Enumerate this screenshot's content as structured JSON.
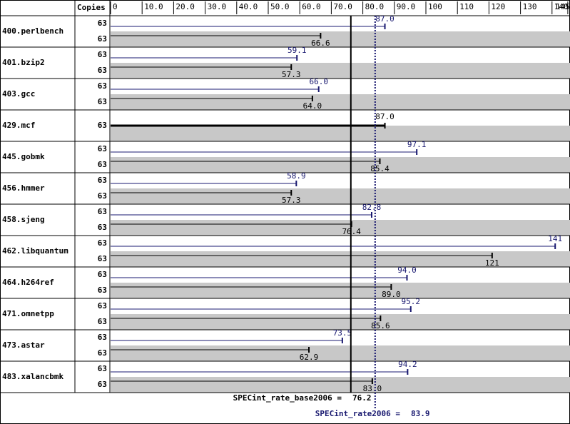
{
  "chart_data": {
    "type": "spec-bar",
    "copies_header": "Copies",
    "categories": [
      "400.perlbench",
      "401.bzip2",
      "403.gcc",
      "429.mcf",
      "445.gobmk",
      "456.hmmer",
      "458.sjeng",
      "462.libquantum",
      "464.h264ref",
      "471.omnetpp",
      "473.astar",
      "483.xalancbmk"
    ],
    "peak": {
      "color": "#191970",
      "copies": [
        63,
        63,
        63,
        null,
        63,
        63,
        63,
        63,
        63,
        63,
        63,
        63
      ],
      "values": [
        87.0,
        59.1,
        66.0,
        null,
        97.1,
        58.9,
        82.8,
        141,
        94.0,
        95.2,
        73.5,
        94.2
      ],
      "value_labels": [
        "87.0",
        "59.1",
        "66.0",
        null,
        "97.1",
        "58.9",
        "82.8",
        "141",
        "94.0",
        "95.2",
        "73.5",
        "94.2"
      ]
    },
    "base": {
      "color": "#000000",
      "copies": [
        63,
        63,
        63,
        63,
        63,
        63,
        63,
        63,
        63,
        63,
        63,
        63
      ],
      "values": [
        66.6,
        57.3,
        64.0,
        87.0,
        85.4,
        57.3,
        76.4,
        121,
        89.0,
        85.6,
        62.9,
        83.0
      ],
      "value_labels": [
        "66.6",
        "57.3",
        "64.0",
        "87.0",
        "85.4",
        "57.3",
        "76.4",
        "121",
        "89.0",
        "85.6",
        "62.9",
        "83.0"
      ]
    },
    "xlim": [
      0,
      145
    ],
    "xticks": [
      0,
      {
        "value": 10,
        "label": "10.0"
      },
      {
        "value": 20,
        "label": "20.0"
      },
      {
        "value": 30,
        "label": "30.0"
      },
      {
        "value": 40,
        "label": "40.0"
      },
      {
        "value": 50,
        "label": "50.0"
      },
      {
        "value": 60,
        "label": "60.0"
      },
      {
        "value": 70,
        "label": "70.0"
      },
      {
        "value": 80,
        "label": "80.0"
      },
      {
        "value": 90,
        "label": "90.0"
      },
      100,
      110,
      120,
      130,
      140,
      145
    ],
    "base_metric": {
      "label": "SPECint_rate_base2006 =",
      "value": 76.2,
      "value_label": "76.2"
    },
    "peak_metric": {
      "label": "SPECint_rate2006 =",
      "value": 83.9,
      "value_label": "83.9"
    }
  }
}
